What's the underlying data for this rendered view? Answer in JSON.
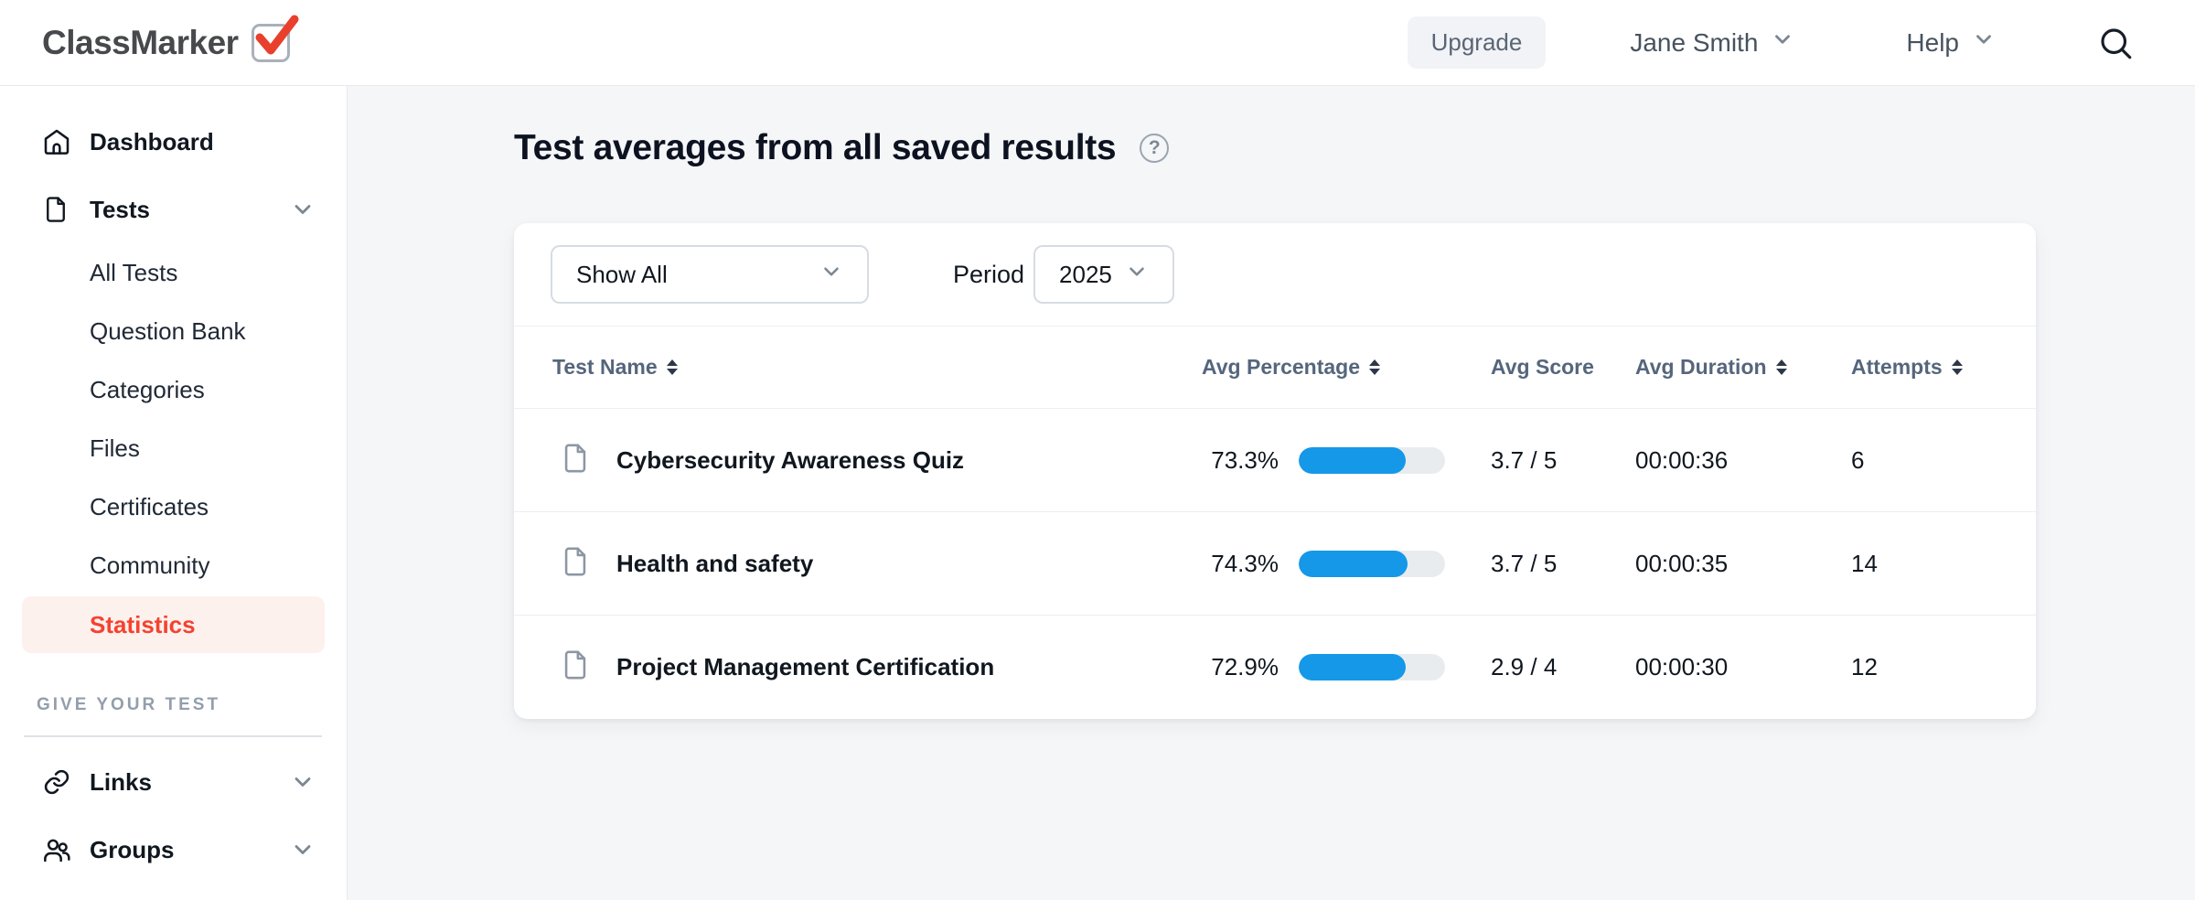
{
  "brand": {
    "name": "ClassMarker"
  },
  "topbar": {
    "upgrade_label": "Upgrade",
    "user_name": "Jane Smith",
    "help_label": "Help"
  },
  "sidebar": {
    "items": [
      {
        "label": "Dashboard",
        "icon": "home-icon"
      },
      {
        "label": "Tests",
        "icon": "file-icon",
        "expandable": true
      },
      {
        "label": "All Tests"
      },
      {
        "label": "Question Bank"
      },
      {
        "label": "Categories"
      },
      {
        "label": "Files"
      },
      {
        "label": "Certificates"
      },
      {
        "label": "Community"
      },
      {
        "label": "Statistics",
        "active": true
      },
      {
        "label": "Links",
        "icon": "link-icon",
        "expandable": true
      },
      {
        "label": "Groups",
        "icon": "groups-icon",
        "expandable": true
      }
    ],
    "section_label": "GIVE YOUR TEST"
  },
  "main": {
    "title": "Test averages from all saved results",
    "help_glyph": "?",
    "filters": {
      "show_filter_value": "Show All",
      "period_label": "Period",
      "period_value": "2025"
    }
  },
  "chart_data": {
    "type": "table",
    "title": "Test averages from all saved results",
    "columns": [
      {
        "label": "Test Name",
        "sortable": true
      },
      {
        "label": "Avg Percentage",
        "sortable": true
      },
      {
        "label": "Avg Score",
        "sortable": false
      },
      {
        "label": "Avg Duration",
        "sortable": true
      },
      {
        "label": "Attempts",
        "sortable": true
      }
    ],
    "rows": [
      {
        "name": "Cybersecurity Awareness Quiz",
        "avg_percentage": "73.3%",
        "pct": 73.3,
        "avg_score": "3.7 / 5",
        "avg_duration": "00:00:36",
        "attempts": "6"
      },
      {
        "name": "Health and safety",
        "avg_percentage": "74.3%",
        "pct": 74.3,
        "avg_score": "3.7 / 5",
        "avg_duration": "00:00:35",
        "attempts": "14"
      },
      {
        "name": "Project Management Certification",
        "avg_percentage": "72.9%",
        "pct": 72.9,
        "avg_score": "2.9 / 4",
        "avg_duration": "00:00:30",
        "attempts": "12"
      }
    ]
  },
  "colors": {
    "accent_blue": "#1598e8",
    "bar_track": "#e9ecef",
    "active_red": "#f5422f",
    "active_bg": "#fdf1ee",
    "logo_check_red": "#e8402c",
    "page_bg": "#f5f6f8"
  }
}
